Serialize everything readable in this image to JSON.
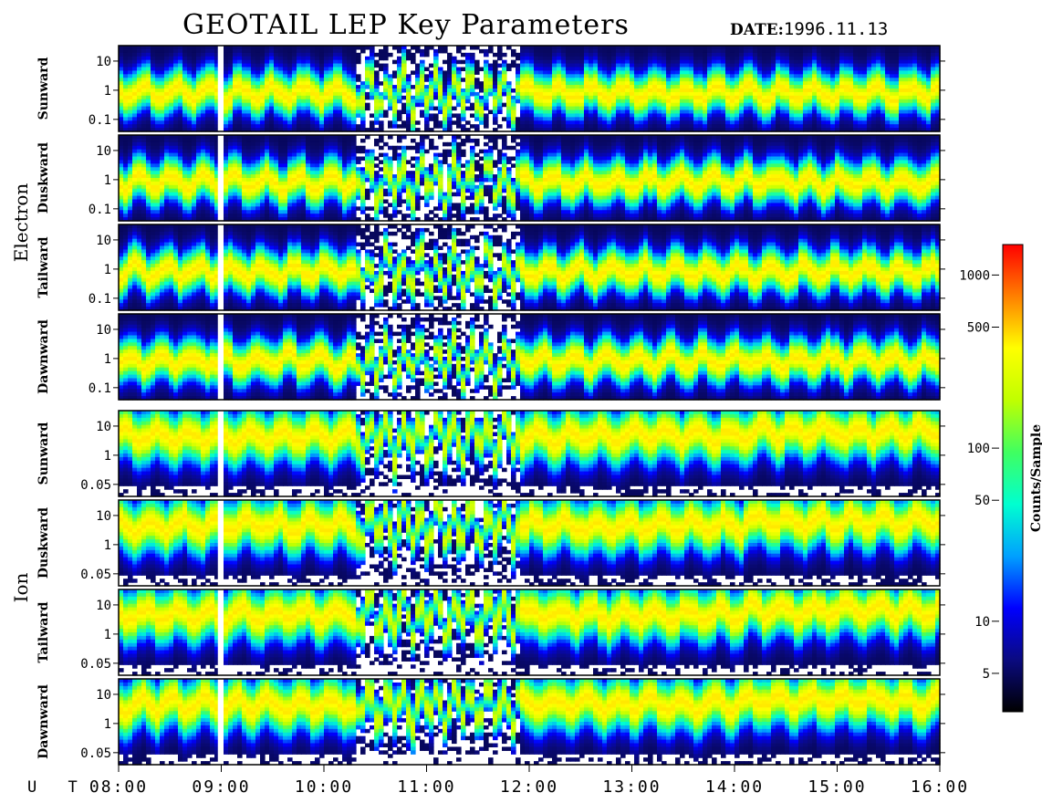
{
  "title": "GEOTAIL LEP Key Parameters",
  "date_label": "DATE:",
  "date_value": "1996.11.13",
  "chart_data": {
    "type": "heatmap",
    "x_axis": {
      "label": "U T",
      "range": [
        "08:00",
        "16:00"
      ],
      "ticks": [
        "08:00",
        "09:00",
        "10:00",
        "11:00",
        "12:00",
        "13:00",
        "14:00",
        "15:00",
        "16:00"
      ]
    },
    "groups": [
      {
        "name": "Electron",
        "panels": [
          {
            "name": "Sunward",
            "y_ticks": [
              "10",
              "1",
              "0.1"
            ]
          },
          {
            "name": "Duskward",
            "y_ticks": [
              "10",
              "1",
              "0.1"
            ]
          },
          {
            "name": "Tailward",
            "y_ticks": [
              "10",
              "1",
              "0.1"
            ]
          },
          {
            "name": "Dawnward",
            "y_ticks": [
              "10",
              "1",
              "0.1"
            ]
          }
        ]
      },
      {
        "name": "Ion",
        "panels": [
          {
            "name": "Sunward",
            "y_ticks": [
              "10",
              "1",
              "0.05"
            ]
          },
          {
            "name": "Duskward",
            "y_ticks": [
              "10",
              "1",
              "0.05"
            ]
          },
          {
            "name": "Tailward",
            "y_ticks": [
              "10",
              "1",
              "0.05"
            ]
          },
          {
            "name": "Dawnward",
            "y_ticks": [
              "10",
              "1",
              "0.05"
            ]
          }
        ]
      }
    ],
    "data_gaps": [
      {
        "start": "08:58",
        "end": "09:00"
      }
    ],
    "colorbar": {
      "label": "Counts/Sample",
      "scale": "log",
      "range": [
        3,
        1500
      ],
      "ticks": [
        1000,
        500,
        100,
        50,
        10,
        5
      ],
      "colormap": [
        "#000000",
        "#0a0a80",
        "#0000ff",
        "#00a0ff",
        "#00ffd0",
        "#40ff60",
        "#c0ff00",
        "#ffff00",
        "#ff8000",
        "#ff0000"
      ]
    }
  }
}
